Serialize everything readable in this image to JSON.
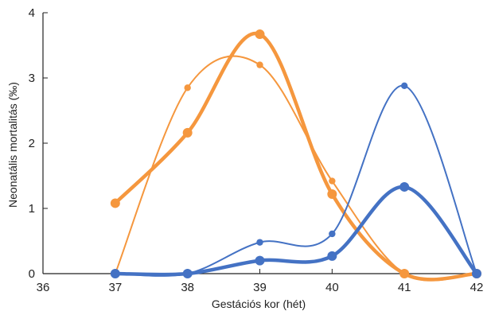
{
  "chart_data": {
    "type": "line",
    "title": "",
    "xlabel": "Gestációs kor (hét)",
    "ylabel": "Neonatális mortalitás (‰)",
    "xlim": [
      36,
      42
    ],
    "ylim": [
      0,
      4
    ],
    "xticks": [
      "36",
      "37",
      "38",
      "39",
      "40",
      "41",
      "42"
    ],
    "yticks": [
      "0",
      "1",
      "2",
      "3",
      "4"
    ],
    "grid": false,
    "series": [
      {
        "x": [
          37,
          38,
          39,
          40,
          41,
          42
        ],
        "y": [
          0.0,
          2.85,
          3.2,
          1.42,
          0.0,
          0.0
        ],
        "color": "#F5973E",
        "style": "thin"
      },
      {
        "x": [
          37,
          38,
          39,
          40,
          41,
          42
        ],
        "y": [
          1.08,
          2.16,
          3.67,
          1.22,
          0.0,
          0.0
        ],
        "color": "#F5973E",
        "style": "thick"
      },
      {
        "x": [
          37,
          38,
          39,
          40,
          41,
          42
        ],
        "y": [
          0.0,
          0.0,
          0.48,
          0.61,
          2.88,
          0.0
        ],
        "color": "#4472C4",
        "style": "thin"
      },
      {
        "x": [
          37,
          38,
          39,
          40,
          41,
          42
        ],
        "y": [
          0.0,
          0.0,
          0.2,
          0.27,
          1.33,
          0.0
        ],
        "color": "#4472C4",
        "style": "thick"
      }
    ]
  }
}
